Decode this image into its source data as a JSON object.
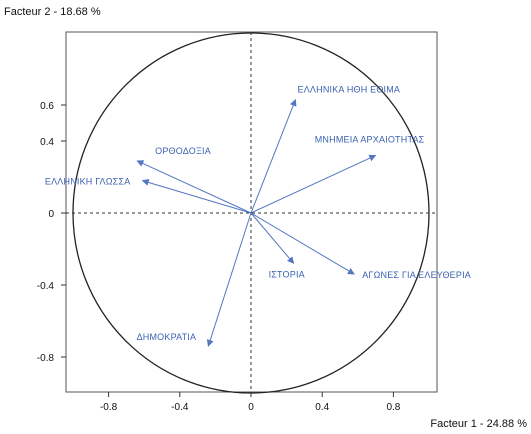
{
  "chart_data": {
    "type": "scatter",
    "subtype": "correlation-circle",
    "title": "",
    "xlabel": "Facteur 1  -  24.88 %",
    "ylabel": "Facteur 2  -  18.68 %",
    "xlim": [
      -1.0,
      1.0
    ],
    "ylim": [
      -1.0,
      1.0
    ],
    "xticks": [
      -0.8,
      -0.4,
      0,
      0.4,
      0.8
    ],
    "xtick_labels": [
      "-0.8",
      "-0.4",
      "0",
      "0.4",
      "0.8"
    ],
    "yticks": [
      0.6,
      0.4,
      0,
      -0.4,
      -0.8
    ],
    "ytick_labels": [
      "0.6",
      "0.4",
      "0",
      "-0.4",
      "-0.8"
    ],
    "grid": false,
    "reference_lines": "dashed lines at x=0 and y=0",
    "unit_circle": true,
    "arrow_color": "#5577c0",
    "label_color": "#3a5fb0",
    "variables": [
      {
        "label": "ΕΛΛΗΝΙΚΑ ΗΘΗ ΕΘΙΜΑ",
        "x": 0.25,
        "y": 0.63
      },
      {
        "label": "ΜΝΗΜΕΙΑ ΑΡΧΑΙΟΤΗΤΑΣ",
        "x": 0.7,
        "y": 0.32
      },
      {
        "label": "ΟΡΘΟΔΟΞΙΑ",
        "x": -0.64,
        "y": 0.29
      },
      {
        "label": "ΕΛΛΗΝΙΚΗ ΓΛΩΣΣΑ",
        "x": -0.61,
        "y": 0.18
      },
      {
        "label": "ΙΣΤΟΡΙΑ",
        "x": 0.24,
        "y": -0.28
      },
      {
        "label": "ΑΓΩΝΕΣ ΓΙΑ ΕΛΕΥΘΕΡΙΑ",
        "x": 0.58,
        "y": -0.34
      },
      {
        "label": "ΔΗΜΟΚΡΑΤΙΑ",
        "x": -0.24,
        "y": -0.74
      }
    ]
  }
}
